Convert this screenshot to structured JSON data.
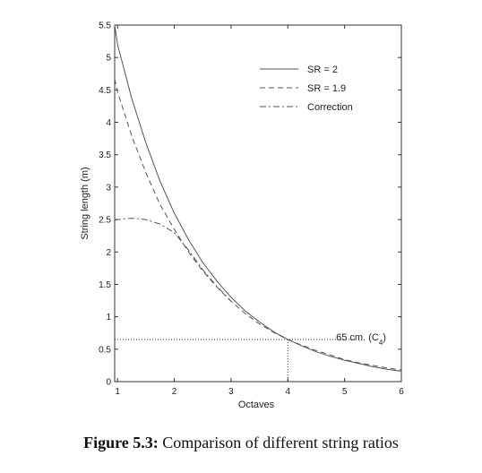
{
  "caption": {
    "label": "Figure 5.3:",
    "text": "Comparison of different string ratios"
  },
  "chart_data": {
    "type": "line",
    "title": "",
    "xlabel": "Octaves",
    "ylabel": "String length (m)",
    "xlim": [
      0.95,
      6
    ],
    "ylim": [
      0,
      5.5
    ],
    "xticks": [
      1,
      2,
      3,
      4,
      5,
      6
    ],
    "yticks": [
      0,
      0.5,
      1,
      1.5,
      2,
      2.5,
      3,
      3.5,
      4,
      4.5,
      5,
      5.5
    ],
    "grid": false,
    "legend": "top-right",
    "series": [
      {
        "name": "SR = 2",
        "style": "solid",
        "x": [
          0.95,
          1,
          1.25,
          1.5,
          1.75,
          2,
          2.25,
          2.5,
          2.75,
          3,
          3.25,
          3.5,
          3.75,
          4,
          4.25,
          4.5,
          4.75,
          5,
          5.25,
          5.5,
          5.75,
          6
        ],
        "y": [
          5.5,
          5.2,
          4.37,
          3.68,
          3.09,
          2.6,
          2.19,
          1.84,
          1.55,
          1.3,
          1.09,
          0.92,
          0.77,
          0.65,
          0.55,
          0.46,
          0.39,
          0.33,
          0.28,
          0.23,
          0.19,
          0.16
        ]
      },
      {
        "name": "SR = 1.9",
        "style": "dashed",
        "x": [
          0.95,
          1,
          1.25,
          1.5,
          1.75,
          2,
          2.25,
          2.5,
          2.75,
          3,
          3.25,
          3.5,
          3.75,
          4,
          4.25,
          4.5,
          4.75,
          5,
          5.25,
          5.5,
          5.75,
          6
        ],
        "y": [
          4.67,
          4.47,
          3.79,
          3.22,
          2.73,
          2.35,
          2.0,
          1.71,
          1.46,
          1.24,
          1.05,
          0.89,
          0.76,
          0.65,
          0.56,
          0.48,
          0.41,
          0.34,
          0.29,
          0.25,
          0.21,
          0.18
        ]
      },
      {
        "name": "Correction",
        "style": "dashdot",
        "x": [
          0.95,
          1,
          1.25,
          1.5,
          1.75,
          2,
          2.25,
          2.5,
          2.75,
          3
        ],
        "y": [
          2.49,
          2.5,
          2.52,
          2.5,
          2.43,
          2.3,
          2.03,
          1.73,
          1.47,
          1.24
        ]
      }
    ],
    "annotation": {
      "text": "65 cm. (C",
      "subscript": "4",
      "close": ")",
      "x": 4,
      "y": 0.65
    }
  }
}
